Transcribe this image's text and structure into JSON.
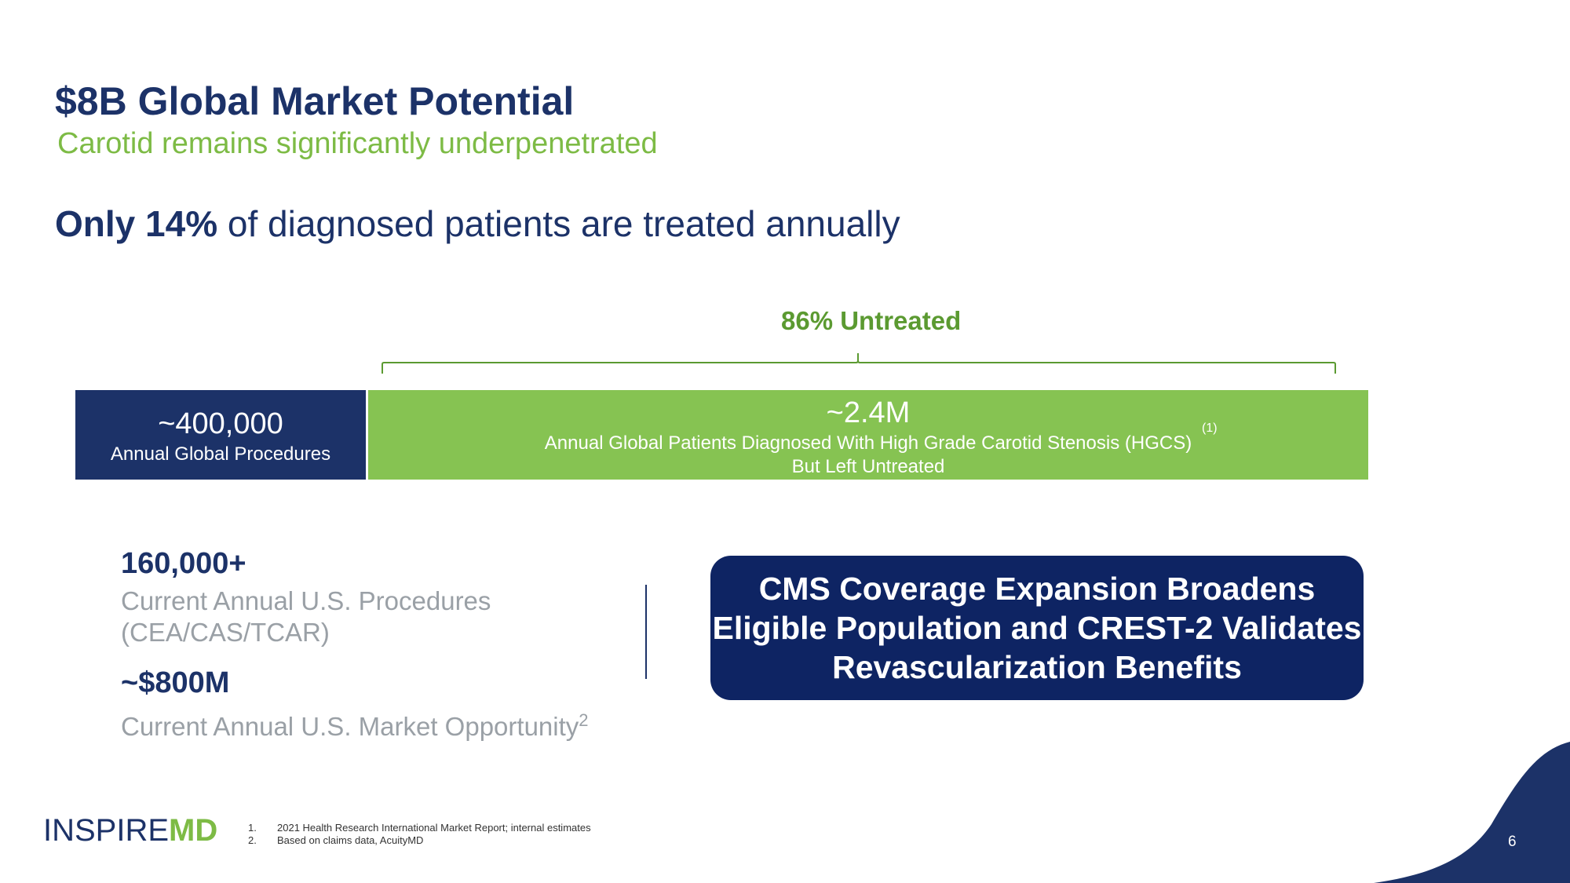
{
  "title": "$8B Global Market Potential",
  "subtitle": "Carotid remains significantly underpenetrated",
  "headline": {
    "strong": "Only 14%",
    "rest": " of diagnosed patients are treated annually"
  },
  "untreated_label": "86% Untreated",
  "bar": {
    "left": {
      "value": "~400,000",
      "label": "Annual Global Procedures"
    },
    "right": {
      "value": "~2.4M",
      "label_line1": "Annual Global Patients Diagnosed With High Grade Carotid Stenosis (HGCS)",
      "label_line2": "But Left Untreated",
      "note": "(1)"
    }
  },
  "stats": [
    {
      "value": "160,000+",
      "label_line1": "Current Annual U.S. Procedures",
      "label_line2": "(CEA/CAS/TCAR)"
    },
    {
      "value": "~$800M",
      "label": "Current Annual U.S. Market Opportunity",
      "sup": "2"
    }
  ],
  "cms_box": {
    "line1": "CMS Coverage Expansion Broadens",
    "line2": "Eligible Population and CREST-2 Validates",
    "line3": "Revascularization Benefits"
  },
  "logo": {
    "part1": "INSPIRE",
    "part2": "MD"
  },
  "footnotes": [
    {
      "num": "1.",
      "text": "2021 Health Research International Market Report; internal estimates"
    },
    {
      "num": "2.",
      "text": "Based on claims data, AcuityMD"
    }
  ],
  "page_number": "6",
  "colors": {
    "navy": "#1c3268",
    "dark_navy": "#0e2463",
    "green": "#86c352",
    "green_text": "#7dbb45",
    "gray_text": "#9aa0a6"
  }
}
